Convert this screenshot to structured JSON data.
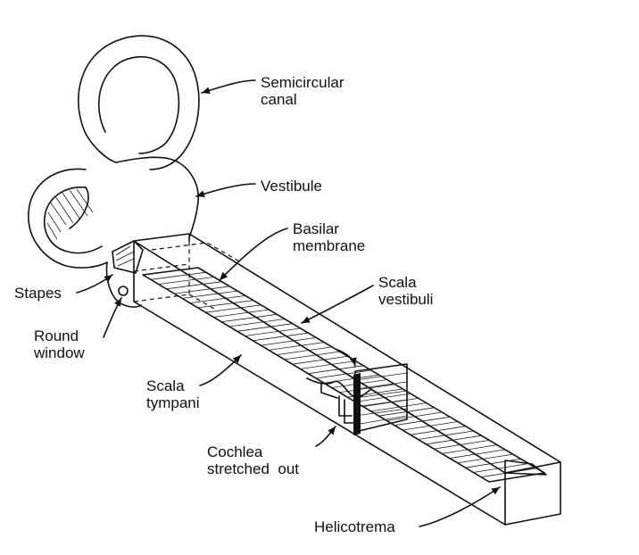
{
  "labels": {
    "semicircular_canal": [
      "Semicircular",
      "canal"
    ],
    "vestibule": "Vestibule",
    "basilar_membrane": [
      "Basilar",
      "membrane"
    ],
    "scala_vestibuli": [
      "Scala",
      "vestibuli"
    ],
    "stapes": "Stapes",
    "round_window": [
      "Round",
      "window"
    ],
    "scala_tympani": [
      "Scala",
      "tympani"
    ],
    "cochlea_stretched_out": [
      "Cochlea",
      "stretched  out"
    ],
    "helicotrema": "Helicotrema"
  }
}
